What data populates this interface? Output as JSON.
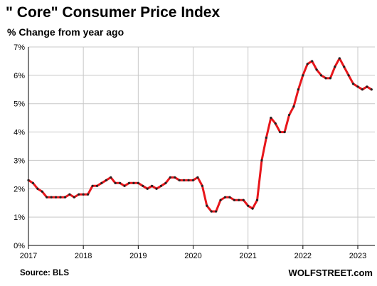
{
  "header": {
    "title": "\" Core\" Consumer Price Index",
    "subtitle": "% Change from year ago"
  },
  "footer": {
    "source": "Source: BLS",
    "brand": "WOLFSTREET.com"
  },
  "colors": {
    "line": "#e8161b",
    "marker": "#222222",
    "grid": "#c8c8c8",
    "axis": "#000000"
  },
  "chart_data": {
    "type": "line",
    "title": "\" Core\" Consumer Price Index",
    "subtitle": "% Change from year ago",
    "xlabel": "",
    "ylabel": "",
    "x_ticks": [
      "2017",
      "2018",
      "2019",
      "2020",
      "2021",
      "2022",
      "2023"
    ],
    "y_ticks": [
      "0%",
      "1%",
      "2%",
      "3%",
      "4%",
      "5%",
      "6%",
      "7%"
    ],
    "xlim": [
      2017.0,
      2023.33
    ],
    "ylim": [
      0,
      7
    ],
    "grid": true,
    "series": [
      {
        "name": "",
        "x": [
          2017.0,
          2017.083,
          2017.167,
          2017.25,
          2017.333,
          2017.417,
          2017.5,
          2017.583,
          2017.667,
          2017.75,
          2017.833,
          2017.917,
          2018.0,
          2018.083,
          2018.167,
          2018.25,
          2018.333,
          2018.417,
          2018.5,
          2018.583,
          2018.667,
          2018.75,
          2018.833,
          2018.917,
          2019.0,
          2019.083,
          2019.167,
          2019.25,
          2019.333,
          2019.417,
          2019.5,
          2019.583,
          2019.667,
          2019.75,
          2019.833,
          2019.917,
          2020.0,
          2020.083,
          2020.167,
          2020.25,
          2020.333,
          2020.417,
          2020.5,
          2020.583,
          2020.667,
          2020.75,
          2020.833,
          2020.917,
          2021.0,
          2021.083,
          2021.167,
          2021.25,
          2021.333,
          2021.417,
          2021.5,
          2021.583,
          2021.667,
          2021.75,
          2021.833,
          2021.917,
          2022.0,
          2022.083,
          2022.167,
          2022.25,
          2022.333,
          2022.417,
          2022.5,
          2022.583,
          2022.667,
          2022.75,
          2022.833,
          2022.917,
          2023.0,
          2023.083,
          2023.167,
          2023.25
        ],
        "y": [
          2.3,
          2.2,
          2.0,
          1.9,
          1.7,
          1.7,
          1.7,
          1.7,
          1.7,
          1.8,
          1.7,
          1.8,
          1.8,
          1.8,
          2.1,
          2.1,
          2.2,
          2.3,
          2.4,
          2.2,
          2.2,
          2.1,
          2.2,
          2.2,
          2.2,
          2.1,
          2.0,
          2.1,
          2.0,
          2.1,
          2.2,
          2.4,
          2.4,
          2.3,
          2.3,
          2.3,
          2.3,
          2.4,
          2.1,
          1.4,
          1.2,
          1.2,
          1.6,
          1.7,
          1.7,
          1.6,
          1.6,
          1.6,
          1.4,
          1.3,
          1.6,
          3.0,
          3.8,
          4.5,
          4.3,
          4.0,
          4.0,
          4.6,
          4.9,
          5.5,
          6.0,
          6.4,
          6.5,
          6.2,
          6.0,
          5.9,
          5.9,
          6.3,
          6.6,
          6.3,
          6.0,
          5.7,
          5.6,
          5.5,
          5.6,
          5.5
        ]
      }
    ]
  }
}
